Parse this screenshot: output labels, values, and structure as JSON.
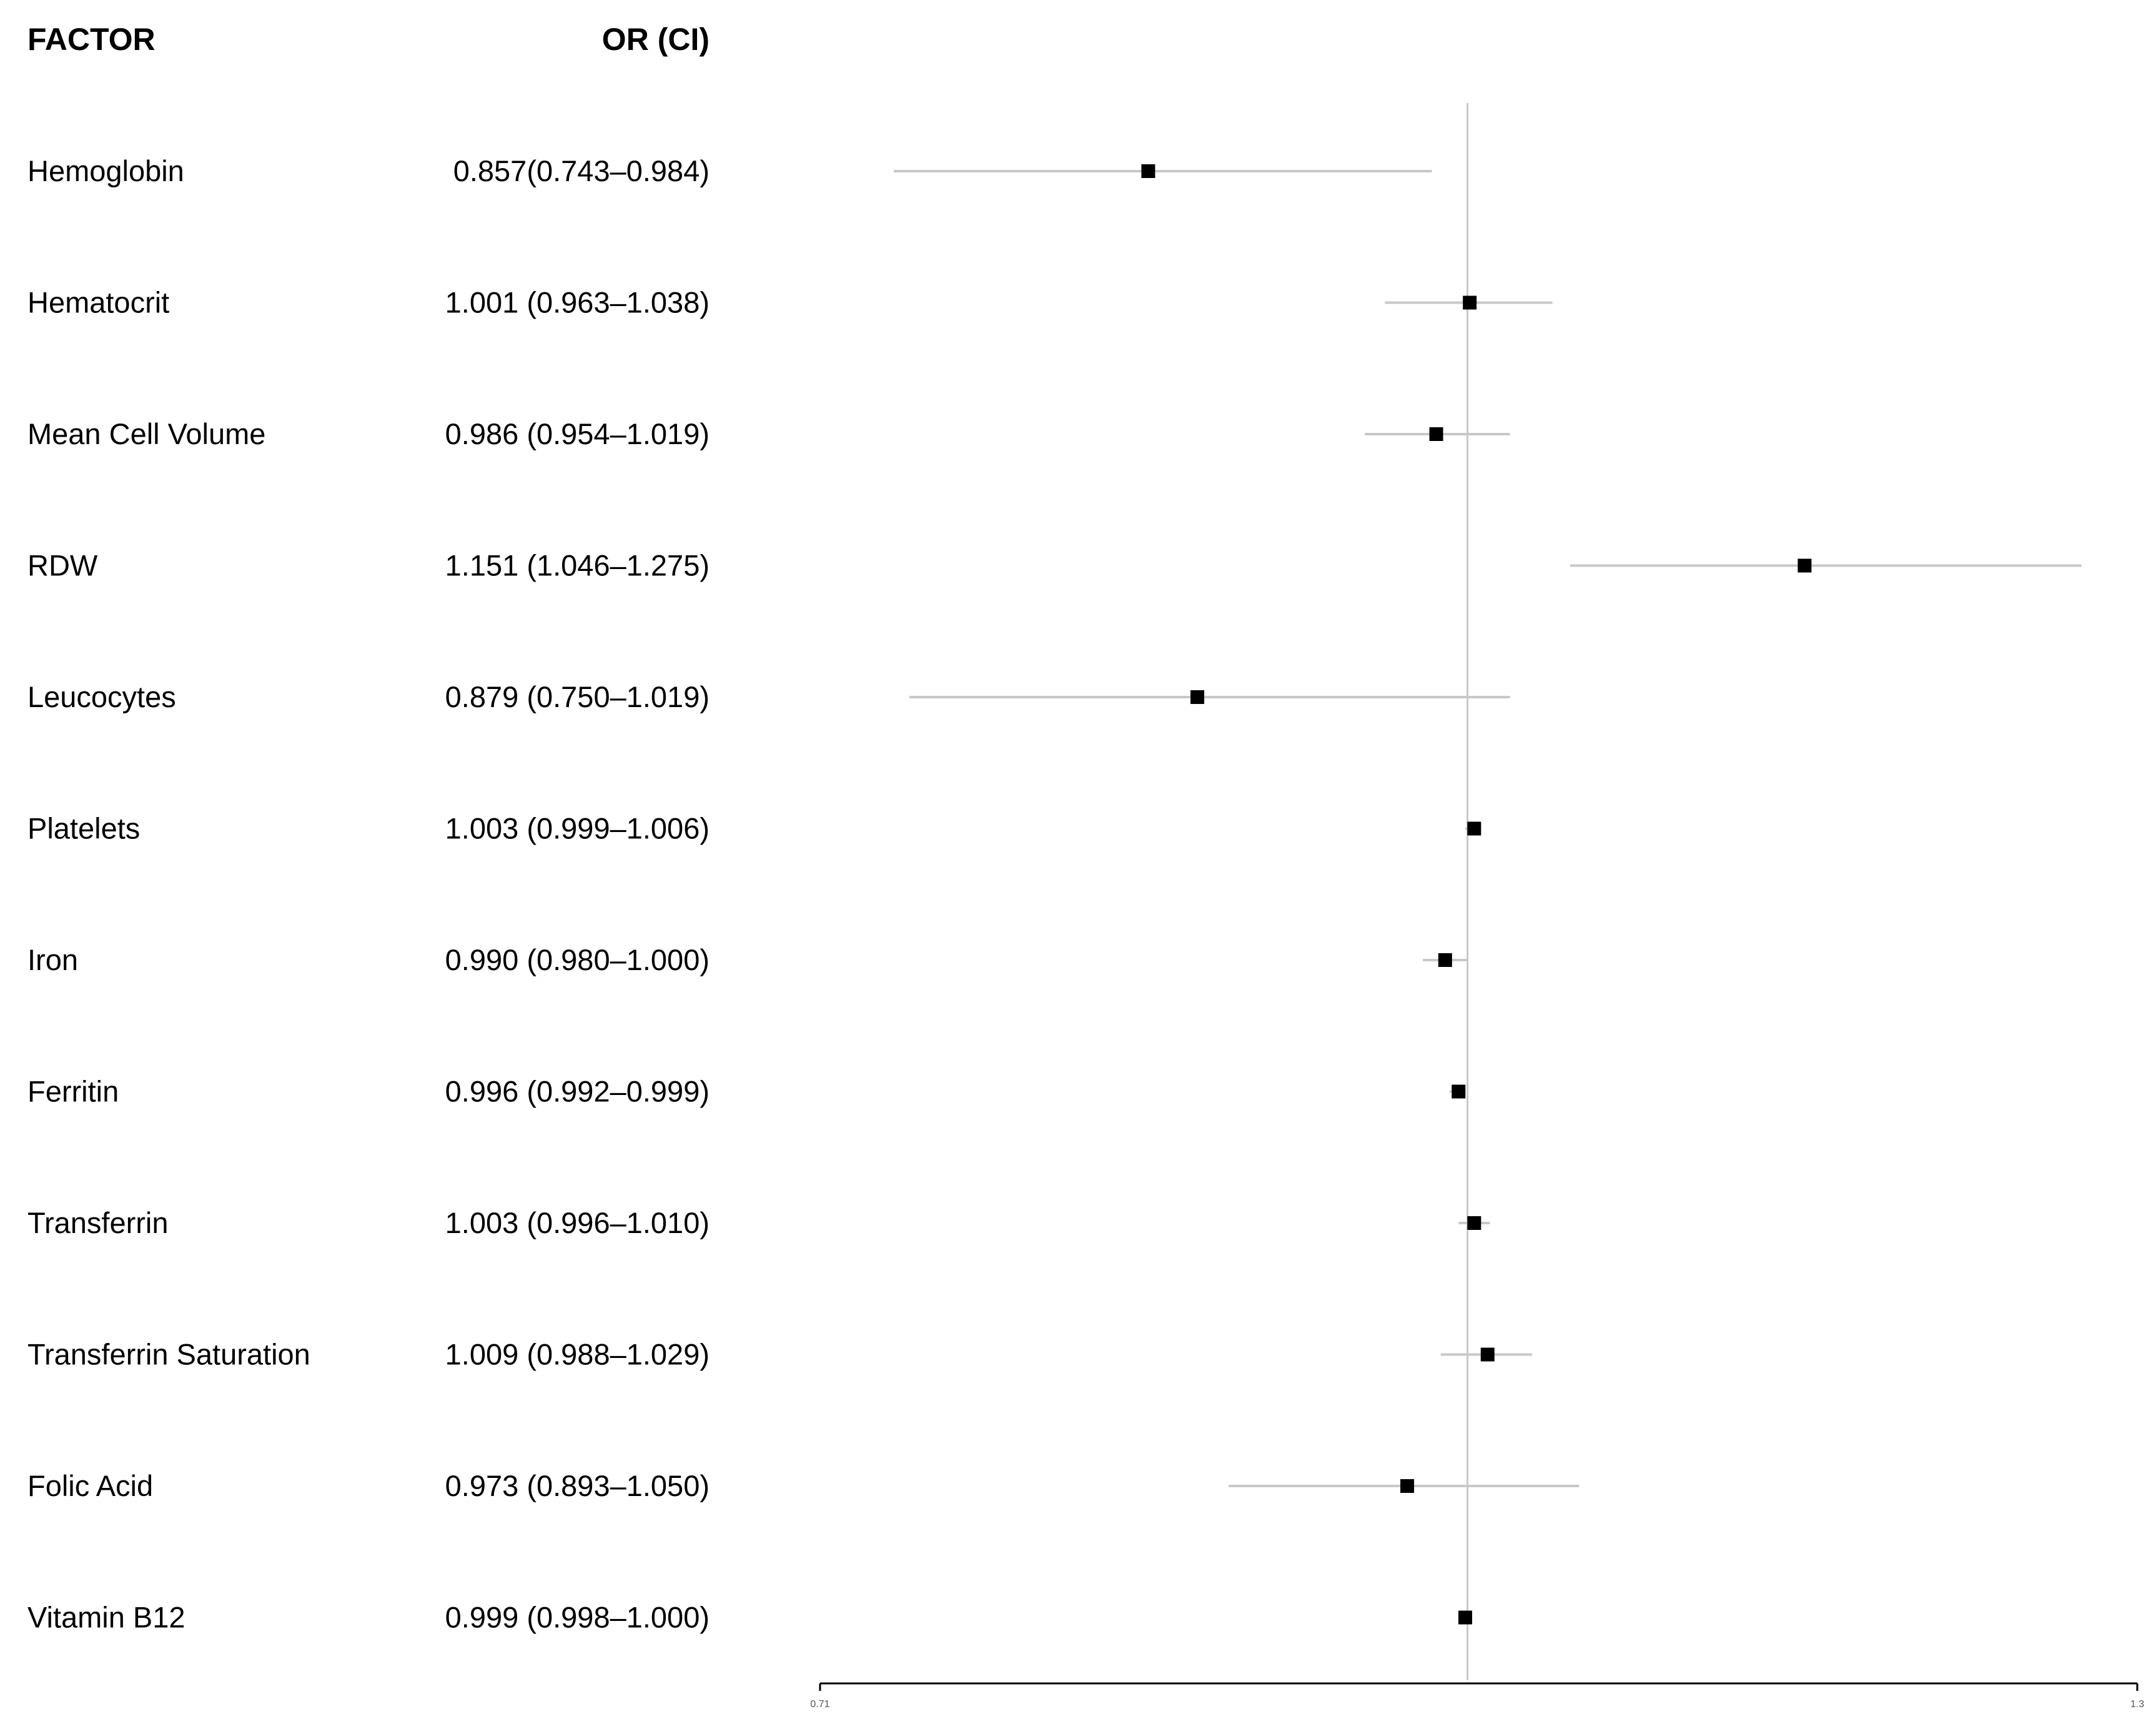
{
  "header": {
    "factor": "FACTOR",
    "or_ci": "OR (CI)"
  },
  "chart_data": {
    "type": "forest",
    "xlim": [
      0.71,
      1.3
    ],
    "reference_line": 1.0,
    "x_ticks": [
      "0.71",
      "1.3"
    ],
    "rows": [
      {
        "factor": "Hemoglobin",
        "or_ci": "0.857(0.743–0.984)",
        "or": 0.857,
        "lower": 0.743,
        "upper": 0.984
      },
      {
        "factor": "Hematocrit",
        "or_ci": "1.001 (0.963–1.038)",
        "or": 1.001,
        "lower": 0.963,
        "upper": 1.038
      },
      {
        "factor": "Mean Cell Volume",
        "or_ci": "0.986 (0.954–1.019)",
        "or": 0.986,
        "lower": 0.954,
        "upper": 1.019
      },
      {
        "factor": "RDW",
        "or_ci": "1.151 (1.046–1.275)",
        "or": 1.151,
        "lower": 1.046,
        "upper": 1.275
      },
      {
        "factor": "Leucocytes",
        "or_ci": "0.879 (0.750–1.019)",
        "or": 0.879,
        "lower": 0.75,
        "upper": 1.019
      },
      {
        "factor": "Platelets",
        "or_ci": "1.003 (0.999–1.006)",
        "or": 1.003,
        "lower": 0.999,
        "upper": 1.006
      },
      {
        "factor": "Iron",
        "or_ci": "0.990 (0.980–1.000)",
        "or": 0.99,
        "lower": 0.98,
        "upper": 1.0
      },
      {
        "factor": "Ferritin",
        "or_ci": "0.996 (0.992–0.999)",
        "or": 0.996,
        "lower": 0.992,
        "upper": 0.999
      },
      {
        "factor": "Transferrin",
        "or_ci": "1.003 (0.996–1.010)",
        "or": 1.003,
        "lower": 0.996,
        "upper": 1.01
      },
      {
        "factor": "Transferrin Saturation",
        "or_ci": "1.009 (0.988–1.029)",
        "or": 1.009,
        "lower": 0.988,
        "upper": 1.029
      },
      {
        "factor": "Folic Acid",
        "or_ci": "0.973 (0.893–1.050)",
        "or": 0.973,
        "lower": 0.893,
        "upper": 1.05
      },
      {
        "factor": "Vitamin B12",
        "or_ci": "0.999 (0.998–1.000)",
        "or": 0.999,
        "lower": 0.998,
        "upper": 1.0
      }
    ]
  }
}
